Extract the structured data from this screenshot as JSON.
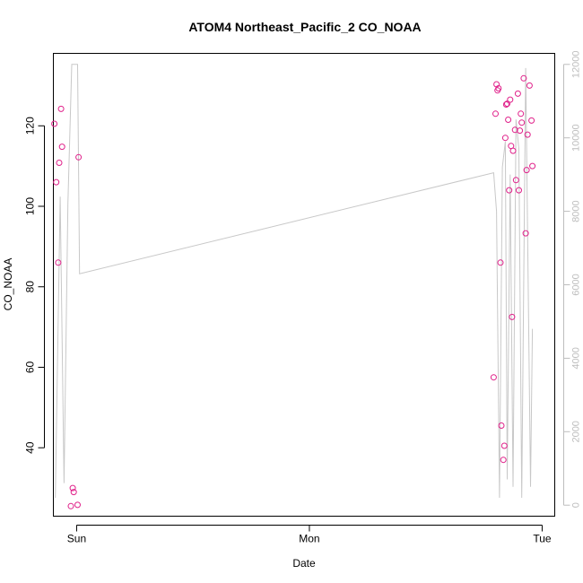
{
  "chart_data": {
    "type": "scatter",
    "title": "ATOM4 Northeast_Pacific_2 CO_NOAA",
    "xlabel": "Date",
    "ylabel": "CO_NOAA",
    "x_ticks": [
      {
        "label": "Sun",
        "value": 0
      },
      {
        "label": "Mon",
        "value": 24
      },
      {
        "label": "Tue",
        "value": 48
      }
    ],
    "xlim": [
      -2.4,
      49.3
    ],
    "y_left": {
      "lim": [
        23,
        138
      ],
      "ticks": [
        40,
        60,
        80,
        100,
        120
      ]
    },
    "y_right": {
      "lim": [
        -300,
        12300
      ],
      "ticks": [
        0,
        2000,
        4000,
        6000,
        8000,
        10000,
        12000
      ],
      "color": "#bdbdbd"
    },
    "series": [
      {
        "kind": "points",
        "axis": "left",
        "color": "#e0218a",
        "points": [
          [
            -2.3,
            120.5
          ],
          [
            -2.1,
            106.0
          ],
          [
            -1.9,
            86.0
          ],
          [
            -1.8,
            110.8
          ],
          [
            -1.6,
            124.2
          ],
          [
            -1.5,
            114.8
          ],
          [
            -0.6,
            25.5
          ],
          [
            -0.4,
            30.0
          ],
          [
            -0.3,
            29.0
          ],
          [
            0.1,
            25.8
          ],
          [
            0.2,
            112.2
          ],
          [
            43.0,
            57.5
          ],
          [
            43.2,
            123.0
          ],
          [
            43.3,
            130.3
          ],
          [
            43.4,
            128.8
          ],
          [
            43.5,
            129.3
          ],
          [
            43.7,
            86.0
          ],
          [
            43.8,
            45.5
          ],
          [
            44.0,
            37.0
          ],
          [
            44.1,
            40.5
          ],
          [
            44.2,
            117.0
          ],
          [
            44.3,
            125.3
          ],
          [
            44.4,
            125.5
          ],
          [
            44.5,
            121.5
          ],
          [
            44.6,
            104.0
          ],
          [
            44.7,
            126.5
          ],
          [
            44.8,
            115.0
          ],
          [
            44.9,
            72.5
          ],
          [
            45.0,
            113.8
          ],
          [
            45.2,
            119.0
          ],
          [
            45.3,
            106.5
          ],
          [
            45.5,
            128.0
          ],
          [
            45.6,
            104.0
          ],
          [
            45.7,
            118.8
          ],
          [
            45.8,
            123.0
          ],
          [
            45.9,
            120.8
          ],
          [
            46.1,
            131.8
          ],
          [
            46.3,
            93.3
          ],
          [
            46.4,
            109.0
          ],
          [
            46.5,
            117.8
          ],
          [
            46.7,
            130.0
          ],
          [
            46.9,
            121.3
          ],
          [
            47.0,
            110.0
          ]
        ]
      },
      {
        "kind": "line",
        "axis": "right",
        "color": "#c8c8c8",
        "points": [
          [
            -2.2,
            200
          ],
          [
            -1.7,
            8400
          ],
          [
            -1.3,
            600
          ],
          [
            -0.9,
            8200
          ],
          [
            -0.5,
            12000
          ],
          [
            0.1,
            12000
          ],
          [
            0.3,
            6300
          ],
          [
            43.0,
            9050
          ],
          [
            43.3,
            8000
          ],
          [
            43.6,
            200
          ],
          [
            43.9,
            9200
          ],
          [
            44.2,
            9900
          ],
          [
            44.4,
            700
          ],
          [
            44.7,
            9000
          ],
          [
            45.0,
            500
          ],
          [
            45.3,
            10500
          ],
          [
            45.6,
            9700
          ],
          [
            45.9,
            200
          ],
          [
            46.3,
            11900
          ],
          [
            46.8,
            500
          ],
          [
            47.0,
            4800
          ]
        ]
      }
    ],
    "grid": false,
    "legend": "none"
  }
}
